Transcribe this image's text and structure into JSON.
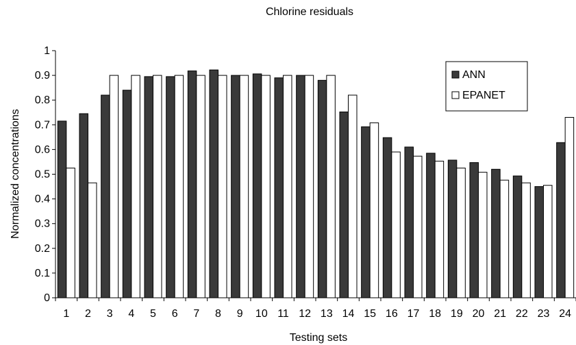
{
  "chart_data": {
    "type": "bar",
    "title": "Chlorine residuals",
    "xlabel": "Testing sets",
    "ylabel": "Normalized concentrations",
    "ylim": [
      0,
      1
    ],
    "yticks": [
      "0",
      "0.1",
      "0.2",
      "0.3",
      "0.4",
      "0.5",
      "0.6",
      "0.7",
      "0.8",
      "0.9",
      "1"
    ],
    "categories": [
      "1",
      "2",
      "3",
      "4",
      "5",
      "6",
      "7",
      "8",
      "9",
      "10",
      "11",
      "12",
      "13",
      "14",
      "15",
      "16",
      "17",
      "18",
      "19",
      "20",
      "21",
      "22",
      "23",
      "24"
    ],
    "series": [
      {
        "name": "ANN",
        "color": "#3a3a3a",
        "values": [
          0.715,
          0.745,
          0.82,
          0.84,
          0.895,
          0.895,
          0.918,
          0.922,
          0.9,
          0.906,
          0.89,
          0.9,
          0.88,
          0.752,
          0.692,
          0.648,
          0.61,
          0.585,
          0.557,
          0.547,
          0.52,
          0.493,
          0.45,
          0.628
        ]
      },
      {
        "name": "EPANET",
        "color": "#ffffff",
        "values": [
          0.525,
          0.465,
          0.9,
          0.9,
          0.9,
          0.9,
          0.9,
          0.9,
          0.9,
          0.9,
          0.9,
          0.9,
          0.9,
          0.82,
          0.708,
          0.59,
          0.573,
          0.553,
          0.525,
          0.508,
          0.476,
          0.465,
          0.455,
          0.73
        ]
      }
    ],
    "legend_position": "top-right",
    "grid": false
  }
}
